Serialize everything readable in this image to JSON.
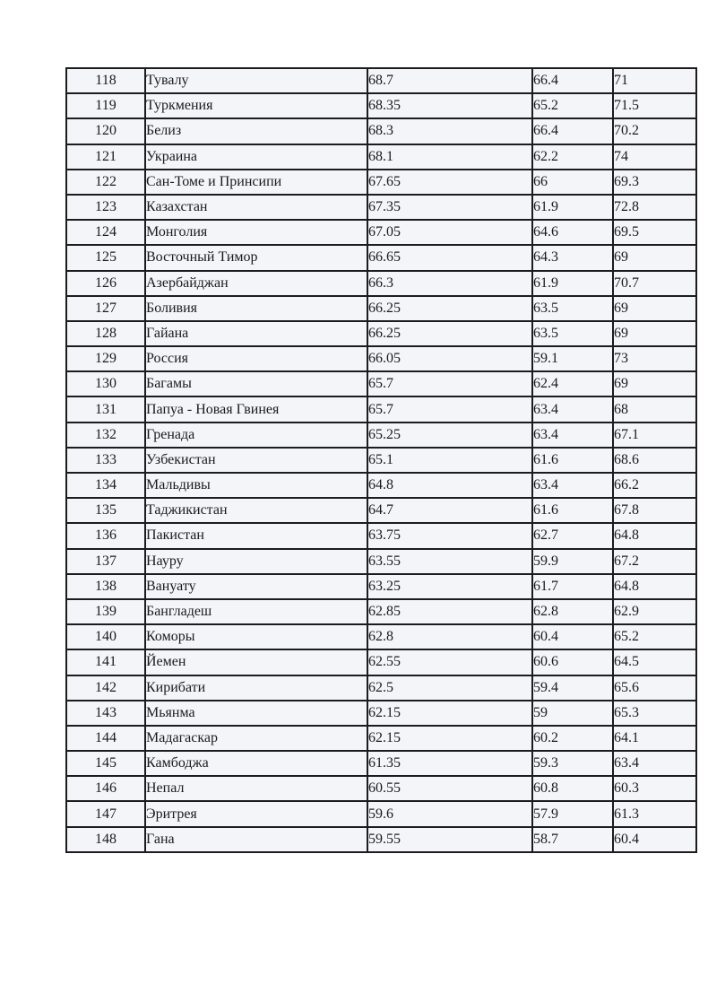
{
  "page": {
    "background_color": "#ffffff",
    "table_border_color": "#1c1c1e",
    "cell_background_color": "#f4f5f8",
    "text_color": "#1a1a1c"
  },
  "table": {
    "visible_headers": null,
    "column_semantics": [
      "rank",
      "country",
      "value-1",
      "value-2",
      "value-3"
    ],
    "rows": [
      [
        "118",
        "Тувалу",
        "68.7",
        "66.4",
        "71"
      ],
      [
        "119",
        "Туркмения",
        "68.35",
        "65.2",
        "71.5"
      ],
      [
        "120",
        "Белиз",
        "68.3",
        "66.4",
        "70.2"
      ],
      [
        "121",
        "Украина",
        "68.1",
        "62.2",
        "74"
      ],
      [
        "122",
        "Сан-Томе и Принсипи",
        "67.65",
        "66",
        "69.3"
      ],
      [
        "123",
        "Казахстан",
        "67.35",
        "61.9",
        "72.8"
      ],
      [
        "124",
        "Монголия",
        "67.05",
        "64.6",
        "69.5"
      ],
      [
        "125",
        "Восточный Тимор",
        "66.65",
        "64.3",
        "69"
      ],
      [
        "126",
        "Азербайджан",
        "66.3",
        "61.9",
        "70.7"
      ],
      [
        "127",
        "Боливия",
        "66.25",
        "63.5",
        "69"
      ],
      [
        "128",
        "Гайана",
        "66.25",
        "63.5",
        "69"
      ],
      [
        "129",
        "Россия",
        "66.05",
        "59.1",
        "73"
      ],
      [
        "130",
        "Багамы",
        "65.7",
        "62.4",
        "69"
      ],
      [
        "131",
        "Папуа - Новая Гвинея",
        "65.7",
        "63.4",
        "68"
      ],
      [
        "132",
        "Гренада",
        "65.25",
        "63.4",
        "67.1"
      ],
      [
        "133",
        "Узбекистан",
        "65.1",
        "61.6",
        "68.6"
      ],
      [
        "134",
        "Мальдивы",
        "64.8",
        "63.4",
        "66.2"
      ],
      [
        "135",
        "Таджикистан",
        "64.7",
        "61.6",
        "67.8"
      ],
      [
        "136",
        "Пакистан",
        "63.75",
        "62.7",
        "64.8"
      ],
      [
        "137",
        "Науру",
        "63.55",
        "59.9",
        "67.2"
      ],
      [
        "138",
        "Вануату",
        "63.25",
        "61.7",
        "64.8"
      ],
      [
        "139",
        "Бангладеш",
        "62.85",
        "62.8",
        "62.9"
      ],
      [
        "140",
        "Коморы",
        "62.8",
        "60.4",
        "65.2"
      ],
      [
        "141",
        "Йемен",
        "62.55",
        "60.6",
        "64.5"
      ],
      [
        "142",
        "Кирибати",
        "62.5",
        "59.4",
        "65.6"
      ],
      [
        "143",
        "Мьянма",
        "62.15",
        "59",
        "65.3"
      ],
      [
        "144",
        "Мадагаскар",
        "62.15",
        "60.2",
        "64.1"
      ],
      [
        "145",
        "Камбоджа",
        "61.35",
        "59.3",
        "63.4"
      ],
      [
        "146",
        "Непал",
        "60.55",
        "60.8",
        "60.3"
      ],
      [
        "147",
        "Эритрея",
        "59.6",
        "57.9",
        "61.3"
      ],
      [
        "148",
        "Гана",
        "59.55",
        "58.7",
        "60.4"
      ]
    ]
  }
}
